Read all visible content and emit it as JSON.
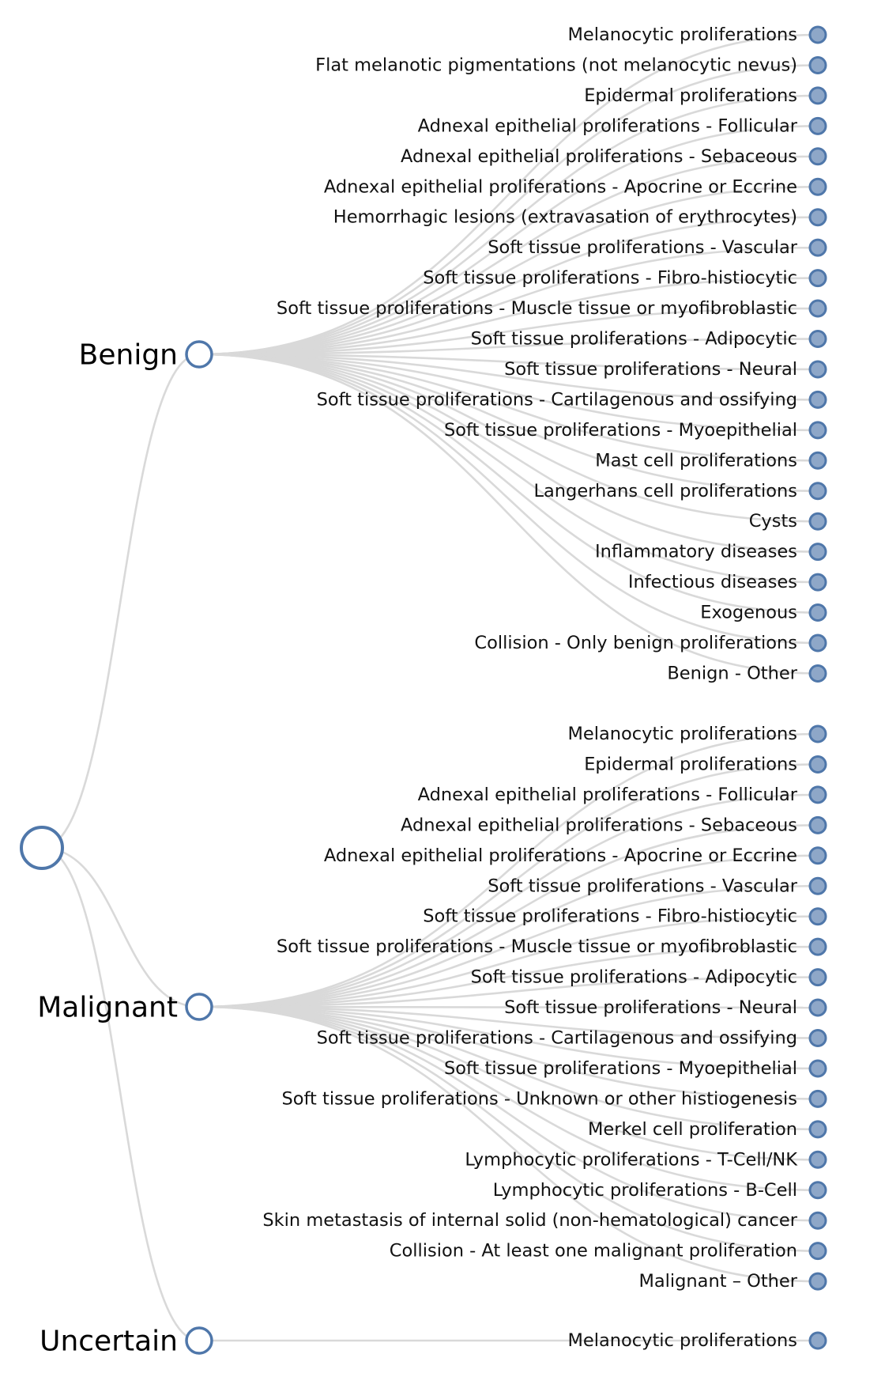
{
  "root": {
    "label": ""
  },
  "categories": [
    {
      "name": "Benign",
      "children": [
        "Melanocytic proliferations",
        "Flat melanotic pigmentations (not melanocytic nevus)",
        "Epidermal proliferations",
        "Adnexal epithelial proliferations - Follicular",
        "Adnexal epithelial proliferations - Sebaceous",
        "Adnexal epithelial proliferations - Apocrine or Eccrine",
        "Hemorrhagic lesions (extravasation of erythrocytes)",
        "Soft tissue proliferations - Vascular",
        "Soft tissue proliferations - Fibro-histiocytic",
        "Soft tissue proliferations - Muscle tissue or myofibroblastic",
        "Soft tissue proliferations - Adipocytic",
        "Soft tissue proliferations - Neural",
        "Soft tissue proliferations - Cartilagenous and ossifying",
        "Soft tissue proliferations - Myoepithelial",
        "Mast cell proliferations",
        "Langerhans cell proliferations",
        "Cysts",
        "Inflammatory diseases",
        "Infectious diseases",
        "Exogenous",
        "Collision - Only benign proliferations",
        "Benign - Other"
      ]
    },
    {
      "name": "Malignant",
      "children": [
        "Melanocytic proliferations",
        "Epidermal proliferations",
        "Adnexal epithelial proliferations - Follicular",
        "Adnexal epithelial proliferations - Sebaceous",
        "Adnexal epithelial proliferations - Apocrine or Eccrine",
        "Soft tissue proliferations - Vascular",
        "Soft tissue proliferations - Fibro-histiocytic",
        "Soft tissue proliferations - Muscle tissue or myofibroblastic",
        "Soft tissue proliferations - Adipocytic",
        "Soft tissue proliferations - Neural",
        "Soft tissue proliferations - Cartilagenous and ossifying",
        "Soft tissue proliferations - Myoepithelial",
        "Soft tissue proliferations - Unknown or other histiogenesis",
        "Merkel cell proliferation",
        "Lymphocytic proliferations - T-Cell/NK",
        "Lymphocytic proliferations - B-Cell",
        "Skin metastasis of internal solid (non-hematological) cancer",
        "Collision - At least one malignant proliferation",
        "Malignant – Other"
      ]
    },
    {
      "name": "Uncertain",
      "children": [
        "Melanocytic proliferations"
      ]
    }
  ],
  "colors": {
    "node_stroke": "#4f77aa",
    "leaf_fill": "#8ea7c8",
    "link": "#d9d9d9"
  }
}
